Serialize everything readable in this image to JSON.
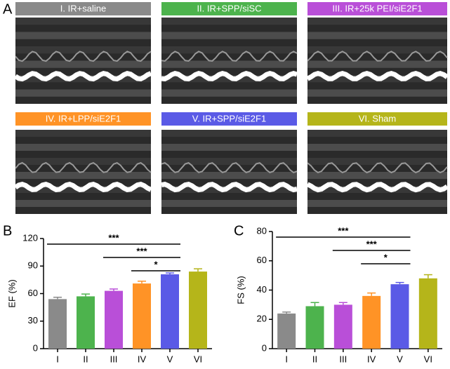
{
  "panel_a": {
    "label": "A",
    "images": [
      {
        "label": "I. IR+saline",
        "color": "#8a8a8a"
      },
      {
        "label": "II. IR+SPP/siSC",
        "color": "#4db34d"
      },
      {
        "label": "III. IR+25k PEI/siE2F1",
        "color": "#b94fd8"
      },
      {
        "label": "IV. IR+LPP/siE2F1",
        "color": "#ff9326"
      },
      {
        "label": "V. IR+SPP/siE2F1",
        "color": "#5a5ae6"
      },
      {
        "label": "VI. Sham",
        "color": "#b5b51a"
      }
    ]
  },
  "chart_data": [
    {
      "type": "bar",
      "panel": "B",
      "ylabel": "EF (%)",
      "categories": [
        "I",
        "II",
        "III",
        "IV",
        "V",
        "VI"
      ],
      "values": [
        54,
        57,
        63,
        71,
        81,
        84
      ],
      "errors": [
        2,
        2.5,
        2,
        2.5,
        1.5,
        3
      ],
      "colors": [
        "#8a8a8a",
        "#4db34d",
        "#b94fd8",
        "#ff9326",
        "#5a5ae6",
        "#b5b51a"
      ],
      "ylim": [
        0,
        120
      ],
      "yticks": [
        0,
        30,
        60,
        90,
        120
      ],
      "comparisons": [
        {
          "label": "***",
          "between": [
            "I",
            "V"
          ]
        },
        {
          "label": "***",
          "between": [
            "III",
            "V"
          ]
        },
        {
          "label": "*",
          "between": [
            "IV",
            "V"
          ]
        }
      ]
    },
    {
      "type": "bar",
      "panel": "C",
      "ylabel": "FS (%)",
      "categories": [
        "I",
        "II",
        "III",
        "IV",
        "V",
        "VI"
      ],
      "values": [
        24,
        29,
        30,
        36,
        44,
        48
      ],
      "errors": [
        1,
        2.5,
        1.5,
        2,
        1.2,
        2.5
      ],
      "colors": [
        "#8a8a8a",
        "#4db34d",
        "#b94fd8",
        "#ff9326",
        "#5a5ae6",
        "#b5b51a"
      ],
      "ylim": [
        0,
        80
      ],
      "yticks": [
        0,
        20,
        40,
        60,
        80
      ],
      "comparisons": [
        {
          "label": "***",
          "between": [
            "I",
            "V"
          ]
        },
        {
          "label": "***",
          "between": [
            "III",
            "V"
          ]
        },
        {
          "label": "*",
          "between": [
            "IV",
            "V"
          ]
        }
      ]
    }
  ]
}
